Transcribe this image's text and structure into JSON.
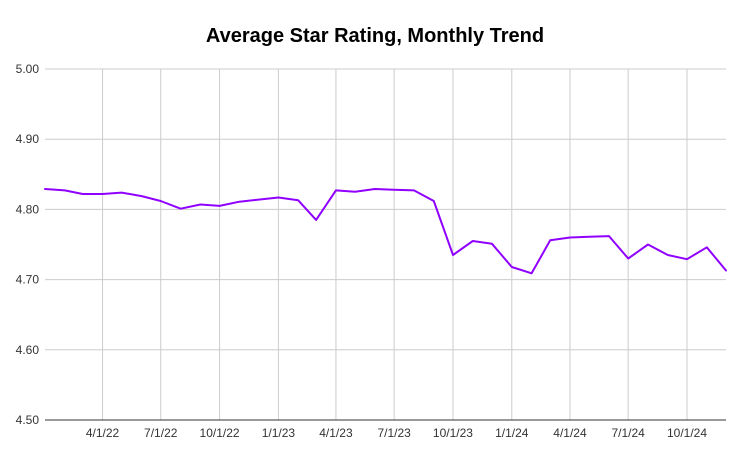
{
  "chart_data": {
    "type": "line",
    "title": "Average Star Rating, Monthly Trend",
    "xlabel": "",
    "ylabel": "",
    "ylim": [
      4.5,
      5.0
    ],
    "yticks": [
      "4.50",
      "4.60",
      "4.70",
      "4.80",
      "4.90",
      "5.00"
    ],
    "xlim": [
      "2022-01-01",
      "2024-12-01"
    ],
    "xticks": [
      {
        "date": "2022-04-01",
        "label": "4/1/22"
      },
      {
        "date": "2022-07-01",
        "label": "7/1/22"
      },
      {
        "date": "2022-10-01",
        "label": "10/1/22"
      },
      {
        "date": "2023-01-01",
        "label": "1/1/23"
      },
      {
        "date": "2023-04-01",
        "label": "4/1/23"
      },
      {
        "date": "2023-07-01",
        "label": "7/1/23"
      },
      {
        "date": "2023-10-01",
        "label": "10/1/23"
      },
      {
        "date": "2024-01-01",
        "label": "1/1/24"
      },
      {
        "date": "2024-04-01",
        "label": "4/1/24"
      },
      {
        "date": "2024-07-01",
        "label": "7/1/24"
      },
      {
        "date": "2024-10-01",
        "label": "10/1/24"
      }
    ],
    "grid": "vertical and horizontal",
    "color": "#9000ff",
    "series": [
      {
        "x": [
          "2022-01-01",
          "2022-02-01",
          "2022-03-01",
          "2022-04-01",
          "2022-05-01",
          "2022-06-01",
          "2022-07-01",
          "2022-08-01",
          "2022-09-01",
          "2022-10-01",
          "2022-11-01",
          "2022-12-01",
          "2023-01-01",
          "2023-02-01",
          "2023-03-01",
          "2023-04-01",
          "2023-05-01",
          "2023-06-01",
          "2023-07-01",
          "2023-08-01",
          "2023-09-01",
          "2023-10-01",
          "2023-11-01",
          "2023-12-01",
          "2024-01-01",
          "2024-02-01",
          "2024-03-01",
          "2024-04-01",
          "2024-05-01",
          "2024-06-01",
          "2024-07-01",
          "2024-08-01",
          "2024-09-01",
          "2024-10-01",
          "2024-11-01",
          "2024-12-01"
        ],
        "y": [
          4.829,
          4.827,
          4.822,
          4.822,
          4.824,
          4.819,
          4.812,
          4.801,
          4.807,
          4.805,
          4.811,
          4.814,
          4.817,
          4.813,
          4.785,
          4.827,
          4.825,
          4.829,
          4.828,
          4.827,
          4.812,
          4.735,
          4.755,
          4.751,
          4.718,
          4.709,
          4.756,
          4.76,
          4.761,
          4.762,
          4.73,
          4.75,
          4.735,
          4.729,
          4.746,
          4.713
        ]
      }
    ]
  }
}
